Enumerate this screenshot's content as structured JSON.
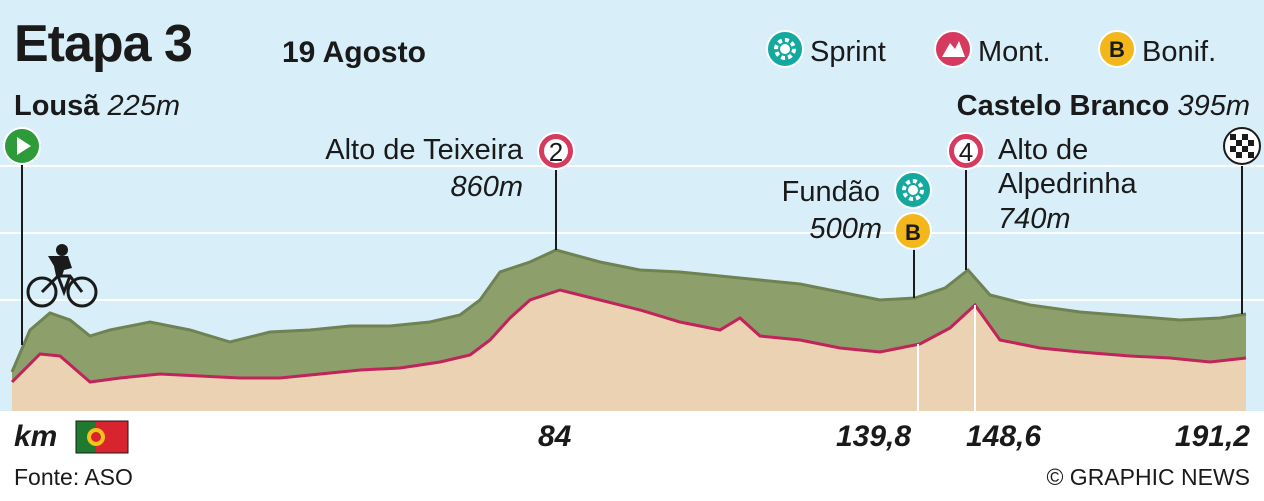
{
  "stage": {
    "title": "Etapa 3",
    "date": "19 Agosto"
  },
  "legend": {
    "sprint": "Sprint",
    "mountain": "Mont.",
    "bonus": "Bonif."
  },
  "start": {
    "name": "Lousã",
    "altitude": "225m"
  },
  "finish": {
    "name": "Castelo Branco",
    "altitude": "395m"
  },
  "climbs": [
    {
      "name": "Alto de Teixeira",
      "altitude": "860m",
      "category": "2"
    },
    {
      "name_line1": "Alto de",
      "name_line2": "Alpedrinha",
      "altitude": "740m",
      "category": "4"
    }
  ],
  "sprint_point": {
    "name": "Fundão",
    "altitude": "500m"
  },
  "bonus_symbol": "B",
  "axis": {
    "unit": "km",
    "marks": [
      "84",
      "139,8",
      "148,6",
      "191,2"
    ]
  },
  "footer": {
    "source": "Fonte: ASO",
    "credit": "© GRAPHIC NEWS"
  },
  "colors": {
    "sky": "#d8eef9",
    "ground": "#ead2b3",
    "road": "#c0245a",
    "terrain_top": "#a9bd8c",
    "terrain_side": "#7c8f5e",
    "sprint": "#13a8a0",
    "mountain": "#d63a5f",
    "bonus": "#f3b71c",
    "start": "#2e9b3a"
  },
  "icons": [
    "start-icon",
    "finish-flag-icon",
    "sprint-icon",
    "mountain-icon",
    "bonus-icon",
    "cyclist-icon",
    "portugal-flag-icon"
  ]
}
